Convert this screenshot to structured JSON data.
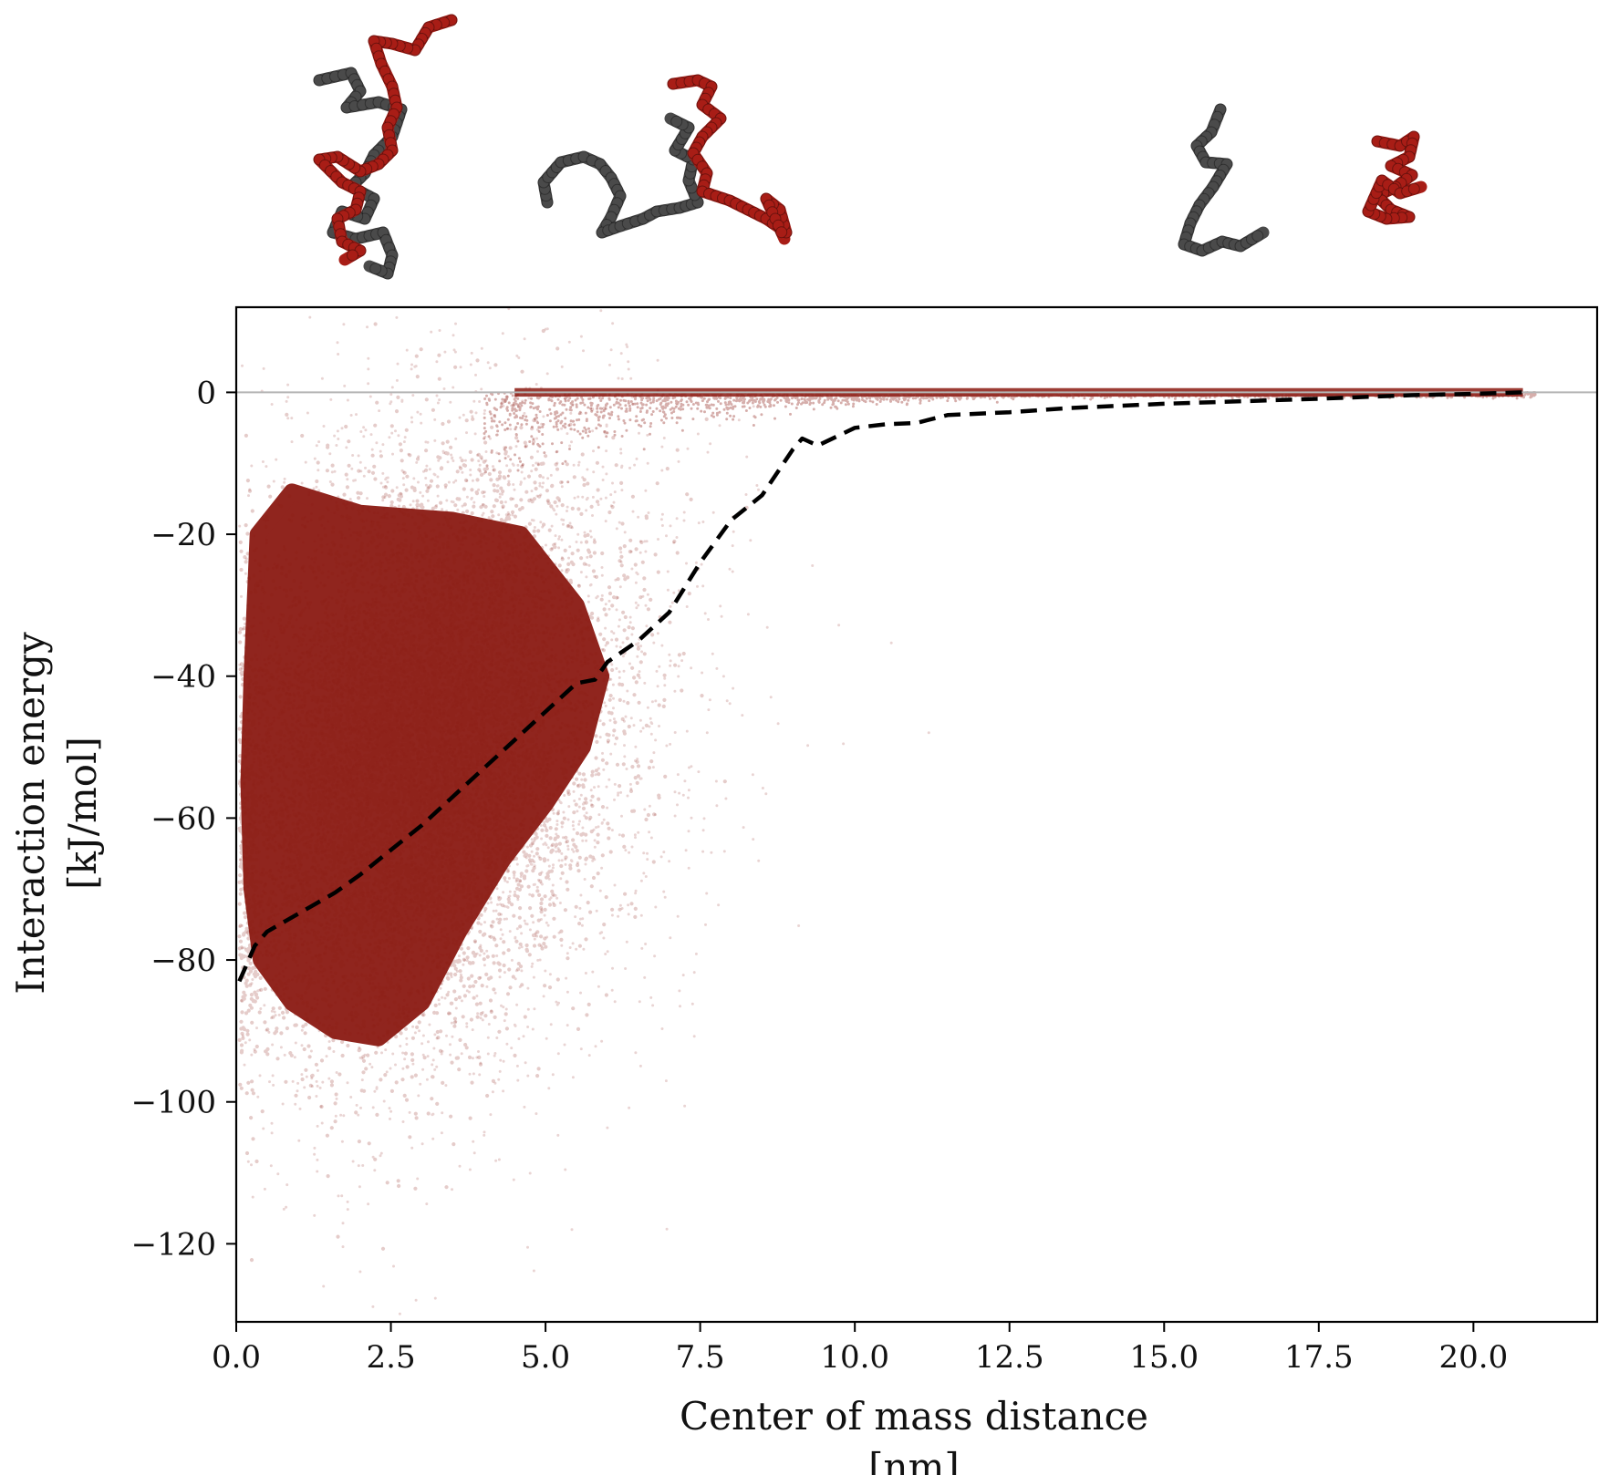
{
  "chart_data": {
    "type": "scatter",
    "title": "",
    "xlabel": [
      "Center of mass distance",
      "[nm]"
    ],
    "ylabel": [
      "Interaction energy",
      "[kJ/mol]"
    ],
    "xlim": [
      0,
      22
    ],
    "ylim": [
      -131,
      12
    ],
    "x_ticks": [
      0,
      2.5,
      5,
      7.5,
      10,
      12.5,
      15,
      17.5,
      20
    ],
    "x_tick_labels": [
      "0.0",
      "2.5",
      "5.0",
      "7.5",
      "10.0",
      "12.5",
      "15.0",
      "17.5",
      "20.0"
    ],
    "y_ticks": [
      0,
      -20,
      -40,
      -60,
      -80,
      -100,
      -120
    ],
    "y_tick_labels": [
      "0",
      "−20",
      "−40",
      "−60",
      "−80",
      "−100",
      "−120"
    ],
    "grid": false,
    "zero_line": 0,
    "series": [
      {
        "kind": "scatter-cloud",
        "color": "#8b1a12",
        "description": "dense dark red cloud of sampled configurations",
        "core_x_range": [
          0.3,
          5.8
        ],
        "core_y_range": [
          -92,
          -18
        ],
        "tail_y_near_zero_x_range": [
          4,
          21
        ]
      },
      {
        "kind": "dashed-line",
        "color": "#000000",
        "description": "mean interaction energy",
        "x": [
          0.05,
          0.15,
          0.3,
          0.5,
          0.8,
          1.2,
          1.6,
          2.0,
          2.5,
          3.0,
          3.5,
          4.0,
          4.5,
          5.0,
          5.5,
          5.8,
          6.0,
          6.5,
          7.0,
          7.5,
          8.0,
          8.5,
          9.0,
          9.15,
          9.4,
          10.0,
          10.5,
          11.0,
          11.5,
          12.5,
          13.5,
          15.0,
          17.5,
          19.0,
          20.0,
          20.8
        ],
        "y": [
          -83,
          -81,
          -78,
          -76,
          -74.5,
          -72.5,
          -70.5,
          -68,
          -64.5,
          -61,
          -57,
          -53,
          -49,
          -45,
          -41,
          -40.5,
          -38,
          -35,
          -31,
          -24,
          -18,
          -14.5,
          -8,
          -6.5,
          -7.5,
          -5,
          -4.5,
          -4.3,
          -3.2,
          -2.8,
          -2.2,
          -1.6,
          -0.9,
          -0.4,
          -0.2,
          0
        ]
      }
    ],
    "structure_images": [
      {
        "position": "x~2.5 nm",
        "chains": [
          "gray",
          "red"
        ],
        "state": "intertwined"
      },
      {
        "position": "x~7.5 nm",
        "chains": [
          "gray",
          "red"
        ],
        "state": "touching at ends"
      },
      {
        "position": "x~16-19 nm",
        "chains": [
          "gray",
          "red"
        ],
        "state": "separated"
      }
    ],
    "colors": {
      "chain_a": "#4a4a4a",
      "chain_b": "#a81d16",
      "cloud": "#8b1a12"
    }
  }
}
